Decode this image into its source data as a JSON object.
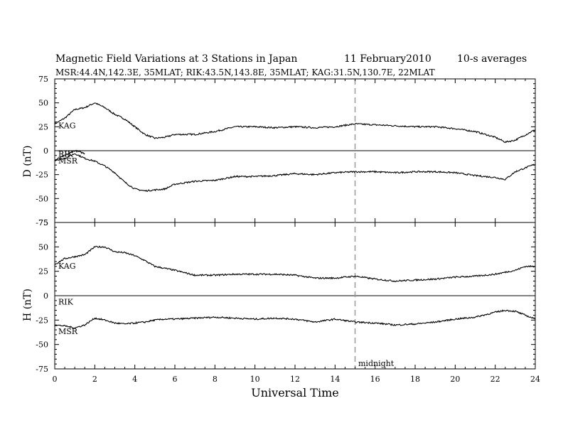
{
  "chart_data": {
    "type": "line",
    "title_line1": {
      "left": "Magnetic Field Variations at 3 Stations in Japan",
      "date": "11 February2010",
      "right": "10-s averages"
    },
    "subtitle": "MSR:44.4N,142.3E, 35MLAT;  RIK:43.5N,143.8E, 35MLAT;  KAG:31.5N,130.7E, 22MLAT",
    "xlabel": "Universal Time",
    "xlim": [
      0,
      24
    ],
    "xticks": [
      "0",
      "2",
      "4",
      "6",
      "8",
      "10",
      "12",
      "14",
      "16",
      "18",
      "20",
      "22",
      "24"
    ],
    "annotation": {
      "text": "midnight",
      "x": 15
    },
    "panels": [
      {
        "ylabel": "D (nT)",
        "ylim": [
          -75,
          75
        ],
        "yticks": [
          "75",
          "50",
          "25",
          "0",
          "-25",
          "-50",
          "-75"
        ],
        "series": [
          {
            "name": "KAG",
            "x": [
              0,
              0.5,
              1,
              1.5,
              2,
              2.5,
              3,
              3.5,
              4,
              4.5,
              5,
              5.5,
              6,
              7,
              8,
              9,
              10,
              11,
              12,
              13,
              14,
              15,
              16,
              17,
              18,
              19,
              20,
              21,
              22,
              22.5,
              23,
              24
            ],
            "y": [
              28,
              34,
              43,
              45,
              50,
              45,
              38,
              33,
              25,
              17,
              13,
              14,
              17,
              17,
              20,
              25,
              25,
              24,
              25,
              24,
              25,
              28,
              27,
              26,
              25,
              25,
              23,
              20,
              14,
              9,
              11,
              22
            ]
          },
          {
            "name": "RIK",
            "x": [
              0,
              0.5,
              1,
              1.2,
              1.5
            ],
            "y": [
              -10,
              -5,
              0,
              -1,
              -3
            ]
          },
          {
            "name": "MSR",
            "x": [
              0,
              0.5,
              1,
              1.5,
              2,
              2.5,
              3,
              3.5,
              4,
              4.5,
              5,
              5.5,
              6,
              7,
              8,
              9,
              10,
              11,
              12,
              13,
              14,
              15,
              16,
              17,
              18,
              19,
              20,
              21,
              22,
              22.5,
              23,
              24
            ],
            "y": [
              -10,
              -8,
              -3,
              -8,
              -11,
              -16,
              -23,
              -33,
              -40,
              -42,
              -41,
              -40,
              -35,
              -32,
              -31,
              -27,
              -27,
              -26,
              -24,
              -25,
              -23,
              -22,
              -22,
              -23,
              -22,
              -22,
              -23,
              -26,
              -28,
              -30,
              -22,
              -14
            ]
          }
        ]
      },
      {
        "ylabel": "H (nT)",
        "ylim": [
          -75,
          75
        ],
        "yticks": [
          "75",
          "50",
          "25",
          "0",
          "-25",
          "-50",
          "-75"
        ],
        "series": [
          {
            "name": "KAG",
            "x": [
              0,
              0.5,
              1,
              1.5,
              2,
              2.5,
              3,
              3.5,
              4,
              4.5,
              5,
              5.5,
              6,
              7,
              8,
              9,
              10,
              11,
              12,
              13,
              14,
              15,
              16,
              17,
              18,
              19,
              20,
              21,
              22,
              23,
              23.5,
              24
            ],
            "y": [
              32,
              38,
              40,
              42,
              50,
              50,
              45,
              44,
              41,
              36,
              30,
              28,
              26,
              21,
              21,
              22,
              22,
              22,
              21,
              18,
              18,
              20,
              17,
              15,
              16,
              17,
              19,
              20,
              22,
              26,
              30,
              30
            ]
          },
          {
            "name": "RIK",
            "x": [],
            "y": []
          },
          {
            "name": "MSR",
            "x": [
              0,
              0.5,
              1,
              1.5,
              2,
              2.5,
              3,
              3.5,
              4,
              4.5,
              5,
              5.5,
              6,
              7,
              8,
              9,
              10,
              11,
              12,
              13,
              14,
              15,
              16,
              17,
              18,
              19,
              20,
              21,
              22,
              22.5,
              23,
              24
            ],
            "y": [
              -30,
              -31,
              -33,
              -30,
              -23,
              -25,
              -28,
              -29,
              -28,
              -27,
              -25,
              -24,
              -24,
              -23,
              -22,
              -23,
              -24,
              -23,
              -24,
              -27,
              -24,
              -27,
              -28,
              -30,
              -29,
              -27,
              -24,
              -22,
              -17,
              -15,
              -16,
              -24
            ]
          }
        ]
      }
    ]
  }
}
